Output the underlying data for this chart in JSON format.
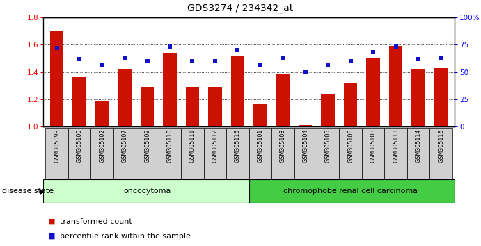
{
  "title": "GDS3274 / 234342_at",
  "samples": [
    "GSM305099",
    "GSM305100",
    "GSM305102",
    "GSM305107",
    "GSM305109",
    "GSM305110",
    "GSM305111",
    "GSM305112",
    "GSM305115",
    "GSM305101",
    "GSM305103",
    "GSM305104",
    "GSM305105",
    "GSM305106",
    "GSM305108",
    "GSM305113",
    "GSM305114",
    "GSM305116"
  ],
  "bar_values": [
    1.7,
    1.36,
    1.19,
    1.42,
    1.29,
    1.54,
    1.29,
    1.29,
    1.52,
    1.17,
    1.39,
    1.01,
    1.24,
    1.32,
    1.5,
    1.59,
    1.42,
    1.43
  ],
  "blue_pct": [
    72,
    62,
    57,
    63,
    60,
    73,
    60,
    60,
    70,
    57,
    63,
    50,
    57,
    60,
    68,
    73,
    62,
    63
  ],
  "ylim_left": [
    1.0,
    1.8
  ],
  "ylim_right": [
    0,
    100
  ],
  "yticks_left": [
    1.0,
    1.2,
    1.4,
    1.6,
    1.8
  ],
  "yticks_right": [
    0,
    25,
    50,
    75,
    100
  ],
  "ytick_labels_right": [
    "0",
    "25",
    "50",
    "75",
    "100%"
  ],
  "oncocytoma_count": 9,
  "chromophobe_count": 9,
  "bar_color": "#cc1100",
  "blue_color": "#1111cc",
  "sample_box_color": "#d0d0d0",
  "oncocytoma_bg": "#ccffcc",
  "chromophobe_bg": "#44cc44",
  "group_label_oncocytoma": "oncocytoma",
  "group_label_chromophobe": "chromophobe renal cell carcinoma",
  "disease_state_label": "disease state",
  "legend_bar": "transformed count",
  "legend_blue": "percentile rank within the sample"
}
